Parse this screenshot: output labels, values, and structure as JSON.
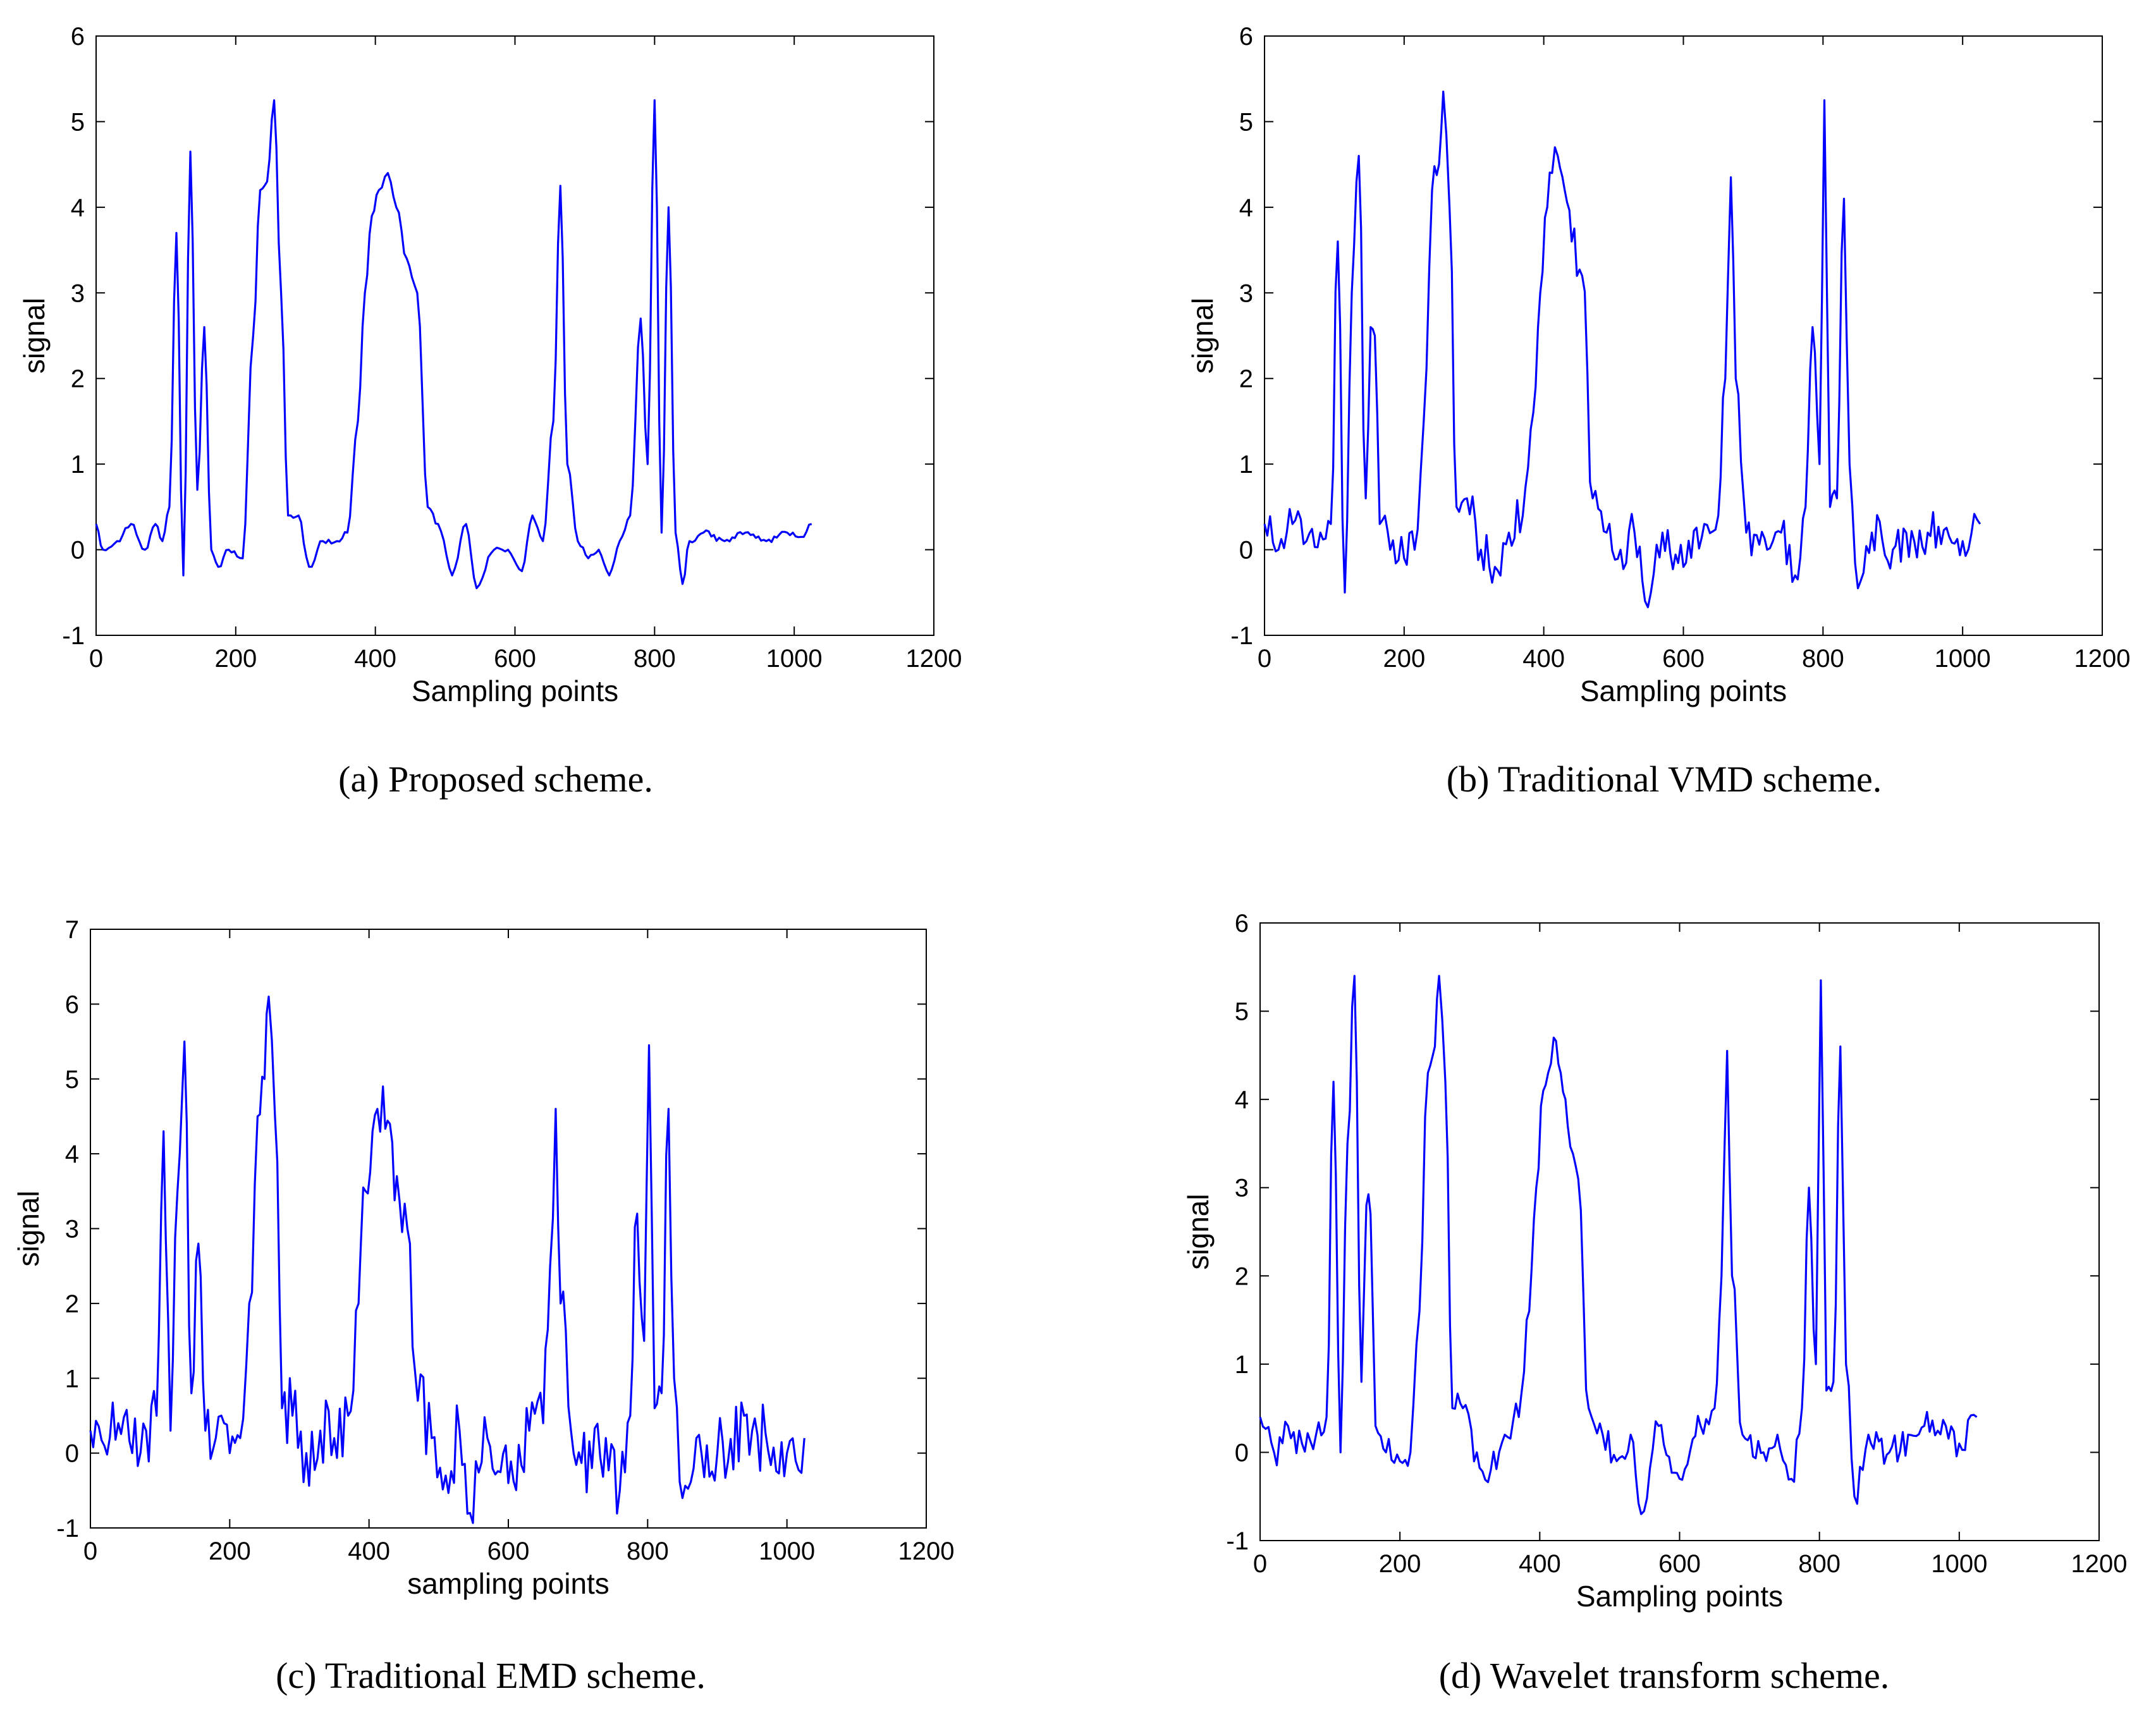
{
  "figure": {
    "panels": [
      {
        "caption": "(a)  Proposed scheme."
      },
      {
        "caption": "(b)  Traditional VMD scheme."
      },
      {
        "caption": "(c)  Traditional EMD scheme."
      },
      {
        "caption": "(d)  Wavelet transform scheme."
      }
    ]
  },
  "chart_data": [
    {
      "type": "line",
      "title": "",
      "caption": "(a)  Proposed scheme.",
      "xlabel": "Sampling points",
      "ylabel": "signal",
      "xlim": [
        0,
        1200
      ],
      "ylim": [
        -1,
        6
      ],
      "xticks": [
        0,
        200,
        400,
        600,
        800,
        1000,
        1200
      ],
      "yticks": [
        -1,
        0,
        1,
        2,
        3,
        4,
        5,
        6
      ],
      "line_color": "#0000ff",
      "noise": 0.03,
      "series": [
        {
          "name": "signal",
          "x": [
            0,
            10,
            30,
            50,
            70,
            85,
            95,
            105,
            115,
            125,
            135,
            145,
            155,
            165,
            175,
            190,
            210,
            225,
            235,
            245,
            255,
            265,
            275,
            290,
            305,
            325,
            345,
            360,
            375,
            385,
            395,
            405,
            418,
            430,
            445,
            460,
            475,
            490,
            510,
            530,
            545,
            570,
            590,
            610,
            625,
            640,
            655,
            665,
            675,
            690,
            705,
            720,
            735,
            750,
            765,
            780,
            790,
            800,
            810,
            820,
            830,
            840,
            850,
            870,
            900,
            930,
            960,
            990,
            1010,
            1025
          ],
          "values": [
            0.3,
            0.0,
            0.1,
            0.3,
            0.0,
            0.3,
            0.1,
            0.5,
            3.7,
            -0.3,
            4.65,
            0.7,
            2.6,
            0.0,
            -0.2,
            0.0,
            -0.1,
            2.5,
            4.2,
            4.3,
            5.25,
            3.0,
            0.4,
            0.4,
            -0.2,
            0.1,
            0.1,
            0.2,
            1.5,
            3.0,
            3.9,
            4.2,
            4.4,
            4.0,
            3.4,
            3.0,
            0.5,
            0.3,
            -0.3,
            0.3,
            -0.45,
            0.0,
            0.0,
            -0.25,
            0.4,
            0.1,
            1.5,
            4.25,
            1.0,
            0.1,
            -0.1,
            0.0,
            -0.3,
            0.1,
            0.4,
            2.7,
            1.0,
            5.25,
            0.2,
            4.0,
            0.2,
            -0.4,
            0.1,
            0.2,
            0.1,
            0.2,
            0.1,
            0.2,
            0.15,
            0.3
          ]
        }
      ]
    },
    {
      "type": "line",
      "title": "",
      "caption": "(b)  Traditional VMD scheme.",
      "xlabel": "Sampling points",
      "ylabel": "signal",
      "xlim": [
        0,
        1200
      ],
      "ylim": [
        -1,
        6
      ],
      "xticks": [
        0,
        200,
        400,
        600,
        800,
        1000,
        1200
      ],
      "yticks": [
        -1,
        0,
        1,
        2,
        3,
        4,
        5,
        6
      ],
      "line_color": "#0000ff",
      "noise": 0.25,
      "series": [
        {
          "name": "signal",
          "x": [
            0,
            20,
            40,
            60,
            80,
            95,
            105,
            115,
            125,
            135,
            145,
            152,
            158,
            165,
            180,
            200,
            215,
            228,
            240,
            250,
            256,
            265,
            275,
            290,
            310,
            330,
            350,
            370,
            385,
            395,
            405,
            412,
            420,
            430,
            440,
            455,
            470,
            490,
            510,
            530,
            545,
            570,
            600,
            630,
            650,
            660,
            668,
            675,
            690,
            720,
            740,
            760,
            775,
            785,
            795,
            802,
            810,
            820,
            830,
            838,
            850,
            870,
            900,
            950,
            1000,
            1025
          ],
          "values": [
            0.3,
            0.0,
            0.3,
            0.1,
            0.2,
            0.3,
            3.6,
            -0.5,
            3.0,
            4.6,
            0.6,
            2.6,
            2.5,
            0.3,
            0.0,
            -0.1,
            0.0,
            1.5,
            4.2,
            4.5,
            5.35,
            4.0,
            0.5,
            0.6,
            0.0,
            -0.2,
            0.2,
            0.4,
            1.6,
            3.0,
            4.0,
            4.4,
            4.6,
            4.2,
            3.6,
            3.2,
            0.6,
            0.2,
            0.0,
            0.2,
            -0.6,
            0.2,
            -0.2,
            0.3,
            0.4,
            2.0,
            4.35,
            2.0,
            0.2,
            0.0,
            0.2,
            -0.3,
            0.5,
            2.6,
            1.0,
            5.25,
            0.5,
            0.6,
            4.1,
            1.0,
            -0.45,
            0.2,
            0.0,
            0.2,
            0.1,
            0.3
          ]
        }
      ]
    },
    {
      "type": "line",
      "title": "",
      "caption": "(c)  Traditional EMD scheme.",
      "xlabel": "sampling points",
      "ylabel": "signal",
      "xlim": [
        0,
        1200
      ],
      "ylim": [
        -1,
        7
      ],
      "xticks": [
        0,
        200,
        400,
        600,
        800,
        1000,
        1200
      ],
      "yticks": [
        -1,
        0,
        1,
        2,
        3,
        4,
        5,
        6,
        7
      ],
      "line_color": "#0000ff",
      "noise": 0.5,
      "series": [
        {
          "name": "signal",
          "x": [
            0,
            20,
            40,
            60,
            80,
            95,
            105,
            115,
            125,
            135,
            145,
            155,
            165,
            180,
            200,
            215,
            228,
            240,
            250,
            256,
            265,
            275,
            290,
            310,
            330,
            350,
            370,
            385,
            395,
            405,
            412,
            420,
            430,
            440,
            455,
            470,
            490,
            510,
            530,
            545,
            570,
            600,
            630,
            650,
            660,
            668,
            675,
            690,
            720,
            740,
            760,
            775,
            785,
            795,
            802,
            810,
            820,
            830,
            838,
            850,
            870,
            900,
            950,
            1000,
            1025
          ],
          "values": [
            0.3,
            0.1,
            0.4,
            0.0,
            0.3,
            0.5,
            4.3,
            0.3,
            3.5,
            5.5,
            0.8,
            2.8,
            0.3,
            0.2,
            0.0,
            0.2,
            2.0,
            4.5,
            5.0,
            6.1,
            4.5,
            0.6,
            0.5,
            0.0,
            0.3,
            0.2,
            0.5,
            2.0,
            3.5,
            4.3,
            4.6,
            4.9,
            4.4,
            3.7,
            3.0,
            0.7,
            0.2,
            -0.3,
            0.3,
            -0.8,
            0.2,
            -0.4,
            0.3,
            0.4,
            2.5,
            4.6,
            2.0,
            0.3,
            -0.2,
            0.2,
            -0.5,
            0.5,
            3.2,
            1.5,
            5.45,
            0.6,
            0.8,
            4.6,
            1.0,
            -0.6,
            0.2,
            0.0,
            0.3,
            0.0,
            0.2
          ]
        }
      ]
    },
    {
      "type": "line",
      "title": "",
      "caption": "(d)  Wavelet transform scheme.",
      "xlabel": "Sampling points",
      "ylabel": "signal",
      "xlim": [
        0,
        1200
      ],
      "ylim": [
        -1,
        6
      ],
      "xticks": [
        0,
        200,
        400,
        600,
        800,
        1000,
        1200
      ],
      "yticks": [
        -1,
        0,
        1,
        2,
        3,
        4,
        5,
        6
      ],
      "line_color": "#0000ff",
      "noise": 0.18,
      "series": [
        {
          "name": "signal",
          "x": [
            0,
            20,
            40,
            60,
            80,
            95,
            105,
            115,
            125,
            135,
            145,
            152,
            158,
            165,
            180,
            200,
            215,
            228,
            240,
            250,
            256,
            265,
            275,
            290,
            310,
            330,
            350,
            370,
            385,
            395,
            405,
            412,
            420,
            430,
            440,
            455,
            470,
            490,
            510,
            530,
            545,
            570,
            600,
            630,
            650,
            660,
            668,
            675,
            690,
            720,
            740,
            760,
            775,
            785,
            795,
            802,
            810,
            820,
            830,
            838,
            850,
            870,
            900,
            950,
            1000,
            1025
          ],
          "values": [
            0.4,
            0.0,
            0.3,
            0.1,
            0.2,
            0.4,
            4.2,
            0.0,
            3.5,
            5.4,
            0.8,
            2.8,
            2.7,
            0.3,
            0.0,
            -0.1,
            0.0,
            1.6,
            4.3,
            4.6,
            5.4,
            4.2,
            0.5,
            0.5,
            0.0,
            -0.2,
            0.2,
            0.4,
            1.6,
            3.0,
            4.1,
            4.3,
            4.7,
            4.3,
            3.7,
            3.1,
            0.5,
            0.2,
            -0.1,
            0.2,
            -0.7,
            0.3,
            -0.3,
            0.3,
            0.5,
            2.0,
            4.55,
            2.0,
            0.2,
            0.0,
            0.2,
            -0.3,
            0.5,
            3.0,
            1.0,
            5.35,
            0.7,
            0.8,
            4.6,
            1.0,
            -0.5,
            0.2,
            0.0,
            0.3,
            0.1,
            0.4
          ]
        }
      ]
    }
  ]
}
